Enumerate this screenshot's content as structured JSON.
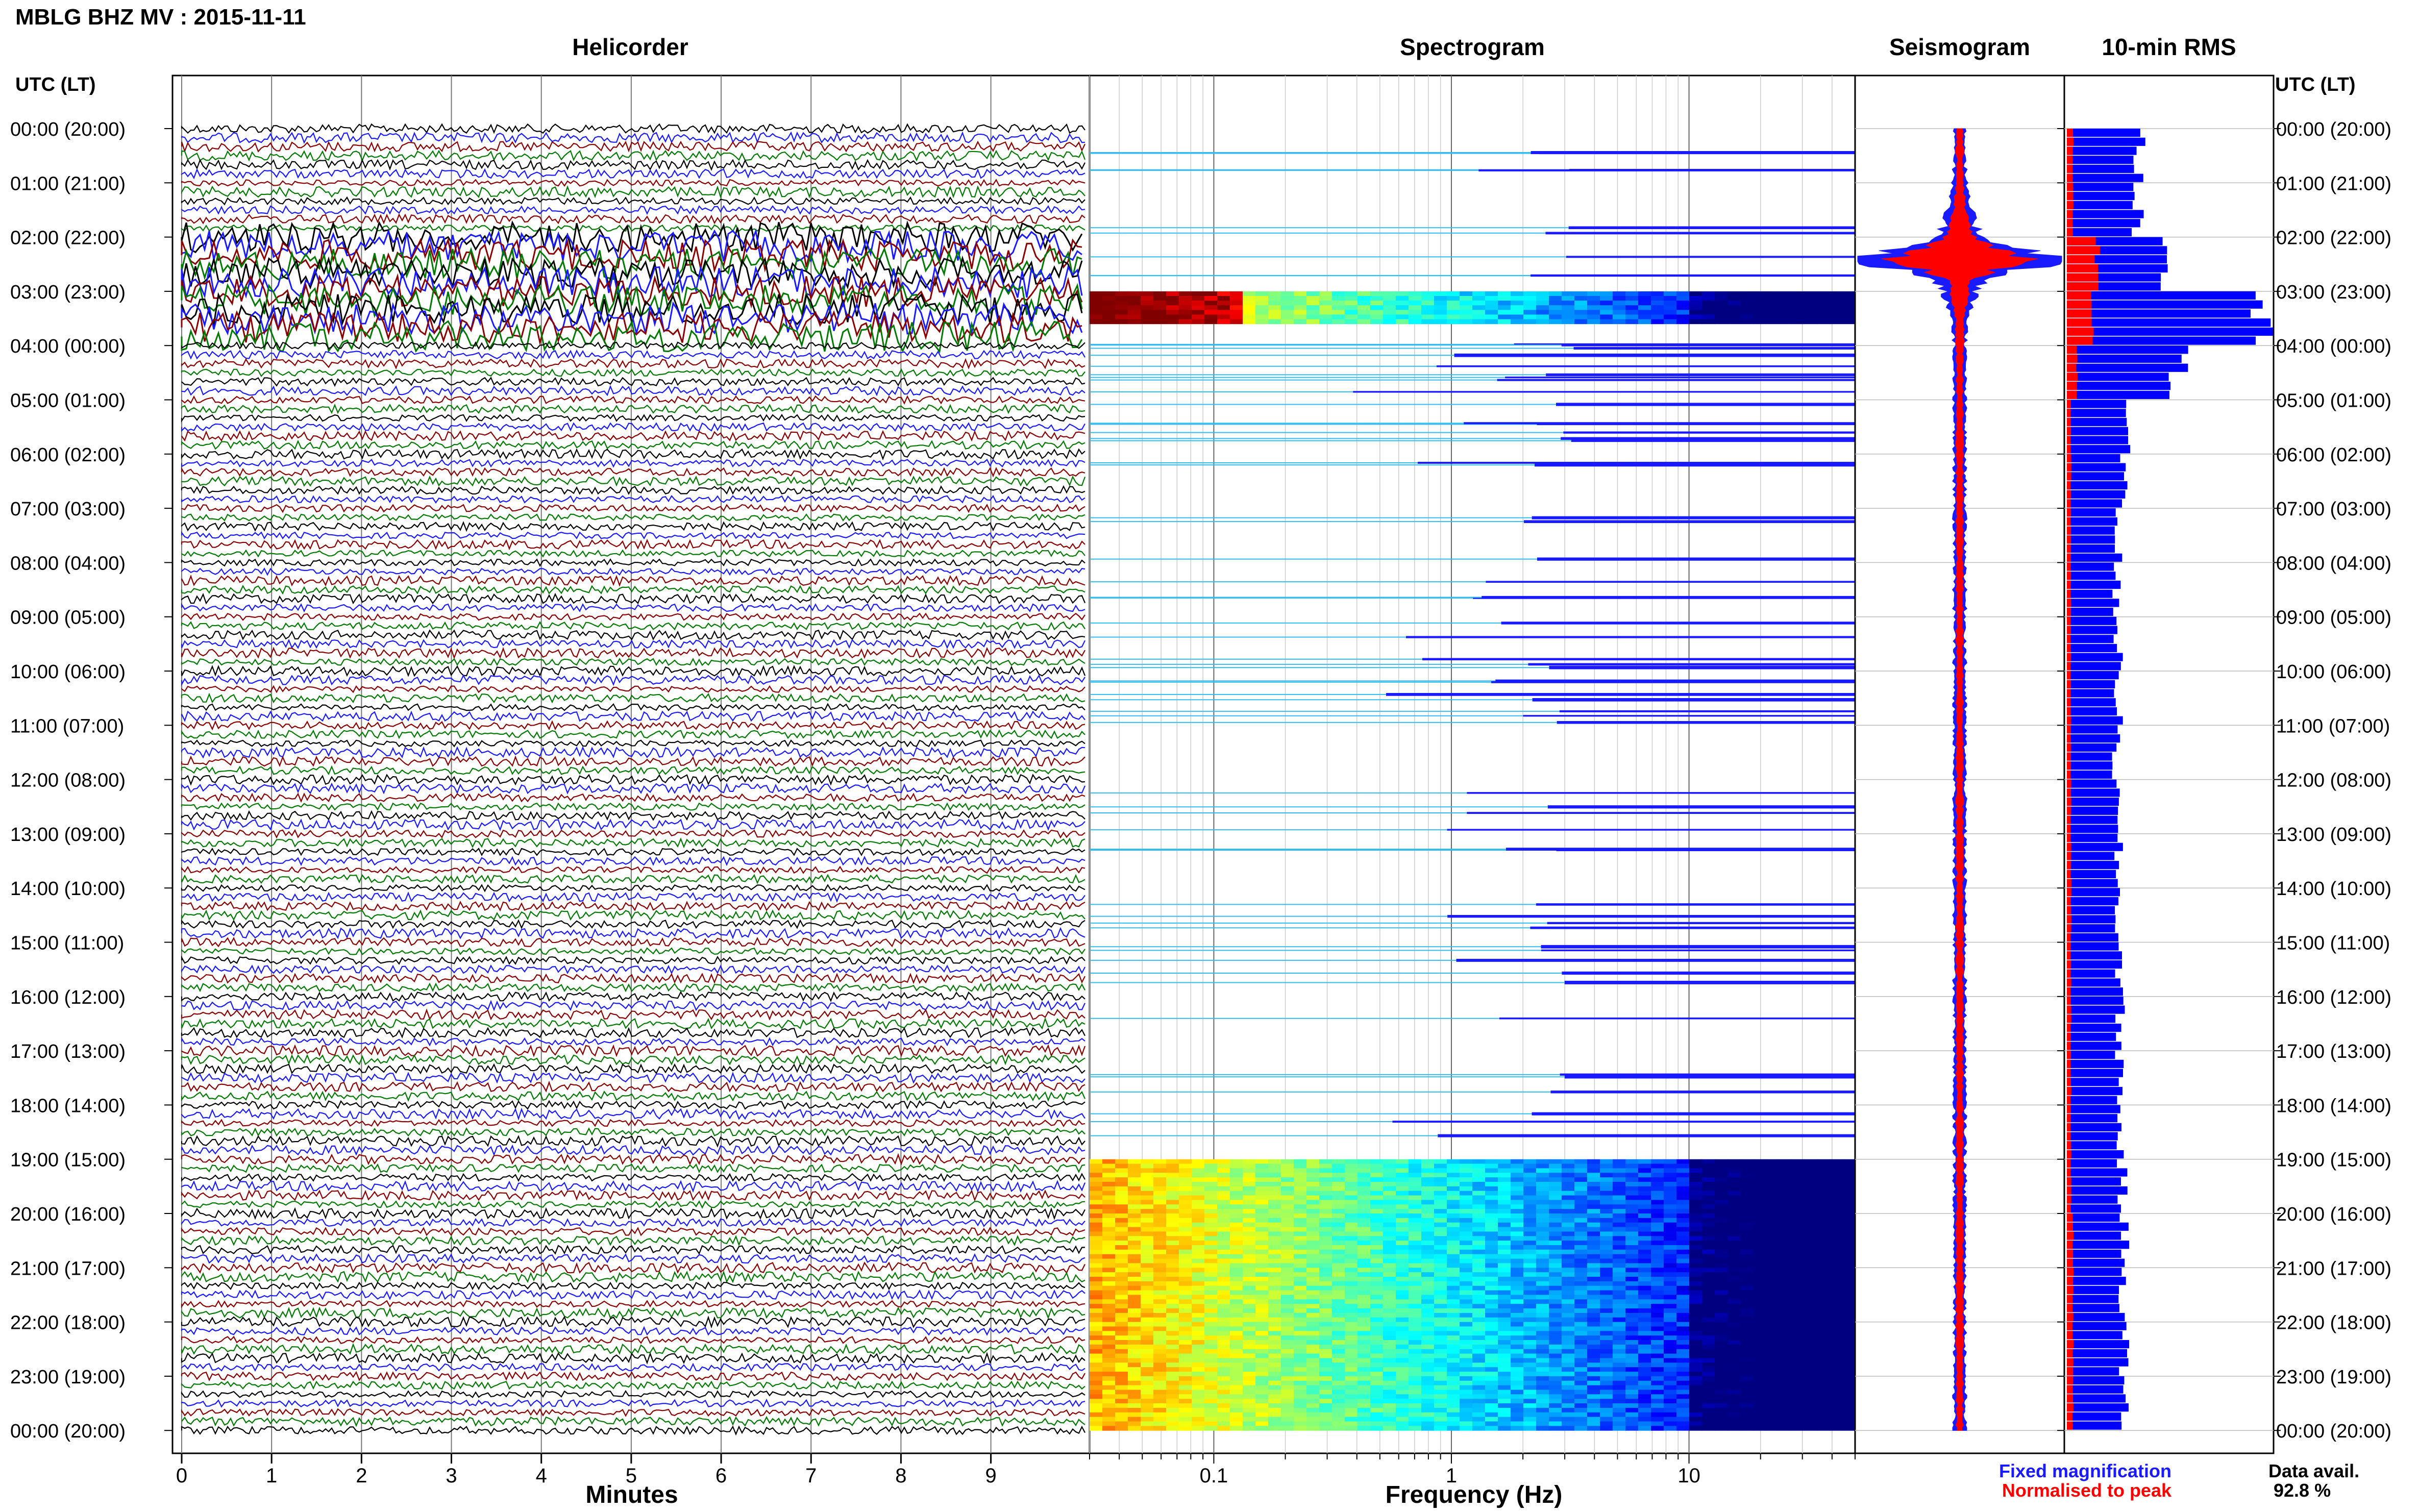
{
  "header": {
    "title": "MBLG BHZ MV : 2015-11-11",
    "utc_label_left": "UTC (LT)",
    "utc_label_right": "UTC (LT)"
  },
  "panels": {
    "helicorder": "Helicorder",
    "spectrogram": "Spectrogram",
    "seismogram": "Seismogram",
    "rms": "10-min RMS"
  },
  "footer": {
    "helicorder_xlabel": "Minutes",
    "spectrogram_xlabel": "Frequency (Hz)",
    "fixed_label": "Fixed magnification",
    "normalised_label": "Normalised to peak",
    "avail_label": "Data avail.",
    "avail_value": "92.8 %"
  },
  "colors": {
    "trace_cycle": [
      "#000000",
      "#1a1aff",
      "#8b0000",
      "#007a00"
    ],
    "fixed": "#1a1aff",
    "normalised": "#ff0000",
    "rms_fill": "#0000ff",
    "grid": "#bbbbbb"
  },
  "chart_data": [
    {
      "type": "line",
      "title": "Helicorder",
      "xlabel": "Minutes",
      "xlim": [
        0,
        10
      ],
      "xticks": [
        "0",
        "1",
        "2",
        "3",
        "4",
        "5",
        "6",
        "7",
        "8",
        "9"
      ],
      "ytick_labels": [
        "00:00 (20:00)",
        "01:00 (21:00)",
        "02:00 (22:00)",
        "03:00 (23:00)",
        "04:00 (00:00)",
        "05:00 (01:00)",
        "06:00 (02:00)",
        "07:00 (03:00)",
        "08:00 (04:00)",
        "09:00 (05:00)",
        "10:00 (06:00)",
        "11:00 (07:00)",
        "12:00 (08:00)",
        "13:00 (09:00)",
        "14:00 (10:00)",
        "15:00 (11:00)",
        "16:00 (12:00)",
        "17:00 (13:00)",
        "18:00 (14:00)",
        "19:00 (15:00)",
        "20:00 (16:00)",
        "21:00 (17:00)",
        "22:00 (18:00)",
        "23:00 (19:00)",
        "00:00 (20:00)"
      ],
      "rows_per_hour": 6,
      "large_amplitude_hours": [
        2,
        3
      ]
    },
    {
      "type": "heatmap",
      "title": "Spectrogram",
      "xlabel": "Frequency (Hz)",
      "xscale": "log",
      "xlim": [
        0.03,
        50
      ],
      "xticks": [
        0.1,
        1,
        10
      ],
      "xtick_labels": [
        "0.1",
        "1",
        "10"
      ],
      "colormap": "jet",
      "energetic_band_hours": [
        3.0,
        3.6
      ],
      "continuous_from_hour": 19.0
    },
    {
      "type": "line",
      "title": "Seismogram",
      "series": [
        {
          "name": "Fixed magnification"
        },
        {
          "name": "Normalised to peak"
        }
      ],
      "peak_hour": 2.4
    },
    {
      "type": "bar",
      "title": "10-min RMS",
      "orientation": "horizontal",
      "series": [
        {
          "name": "Fixed magnification",
          "values_by_hour": [
            0.35,
            0.35,
            0.5,
            1.0,
            0.55,
            0.3,
            0.27,
            0.25,
            0.24,
            0.25,
            0.25,
            0.24,
            0.24,
            0.25,
            0.25,
            0.26,
            0.26,
            0.26,
            0.26,
            0.27,
            0.28,
            0.28,
            0.28,
            0.28
          ]
        },
        {
          "name": "Normalised to peak",
          "values_by_hour": [
            0.03,
            0.03,
            0.15,
            0.12,
            0.05,
            0.02,
            0.02,
            0.02,
            0.02,
            0.02,
            0.02,
            0.02,
            0.02,
            0.02,
            0.02,
            0.02,
            0.02,
            0.02,
            0.02,
            0.02,
            0.03,
            0.03,
            0.03,
            0.03
          ]
        }
      ]
    }
  ]
}
